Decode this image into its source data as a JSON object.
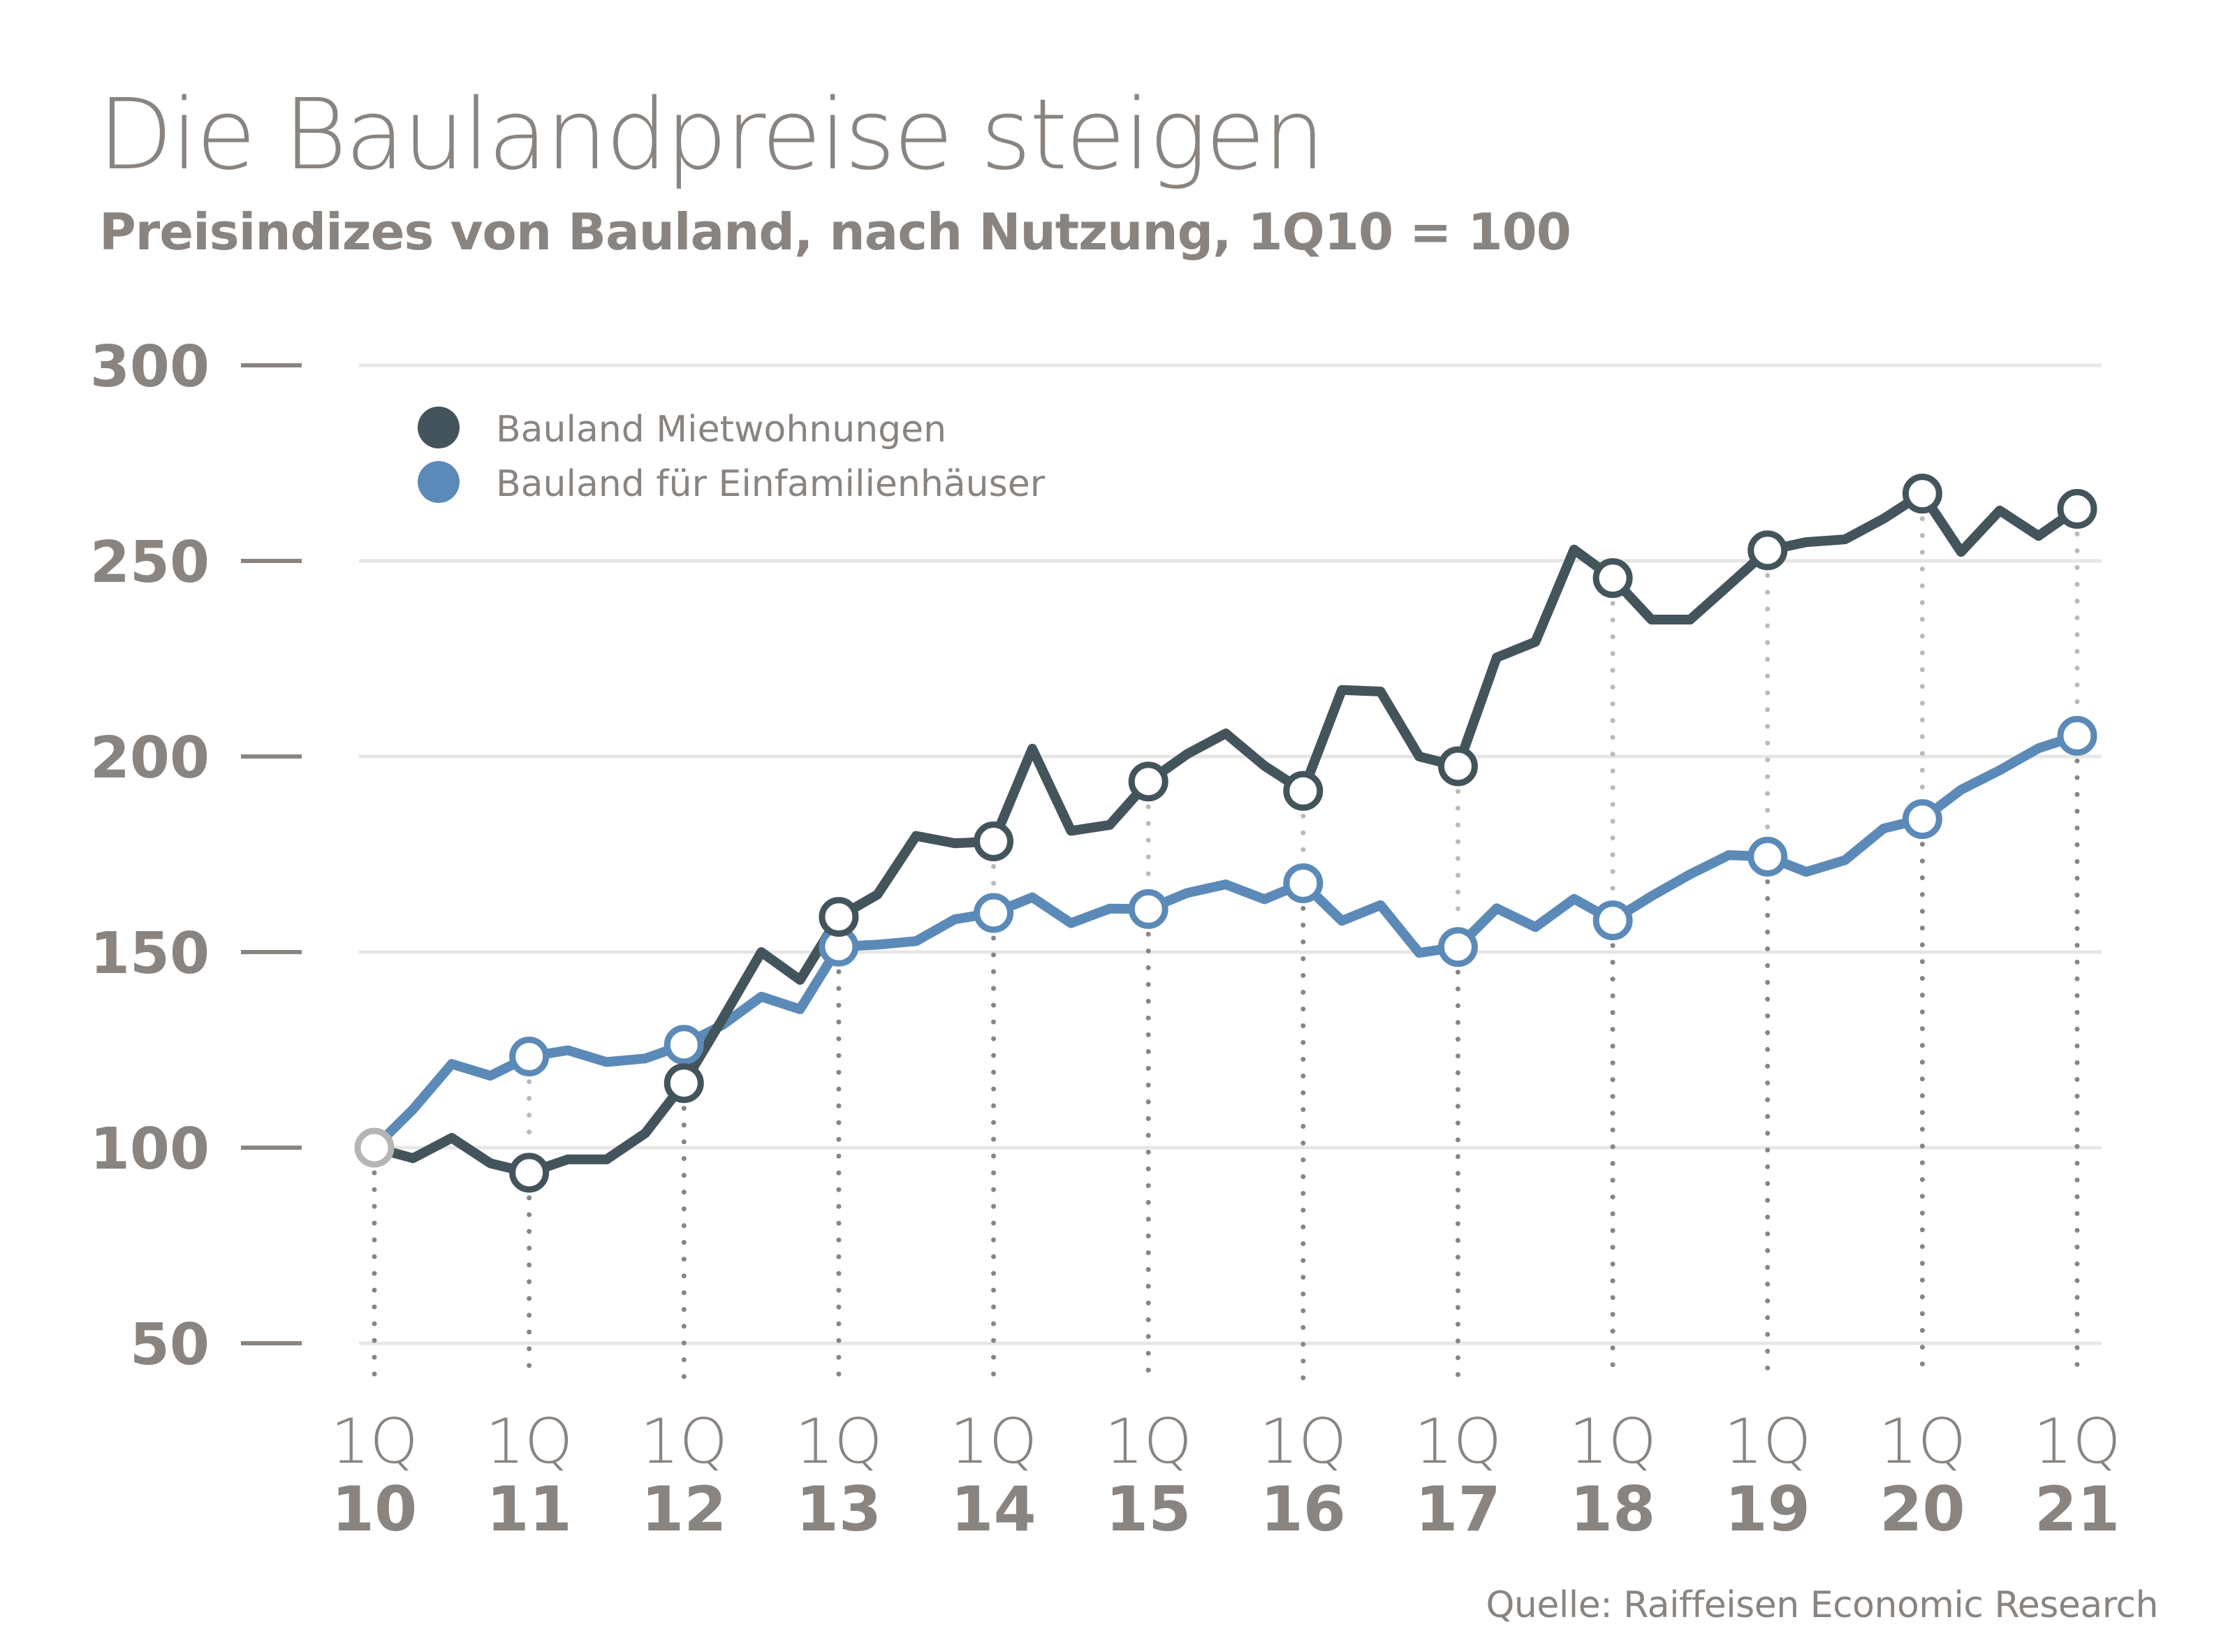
{
  "header": {
    "title": "Die Baulandpreise steigen",
    "subtitle": "Preisindizes von Bauland, nach Nutzung, 1Q10 = 100"
  },
  "footer": {
    "source": "Quelle: Raiffeisen Economic Research"
  },
  "colors": {
    "text": "#8a8480",
    "gridline": "#e8e6e5",
    "series_dark": "#44545c",
    "series_blue": "#5b8ab8",
    "base_marker": "#b5b5b5",
    "dotted_upper": "#bdb9b6",
    "dotted_lower": "#8a8480"
  },
  "chart_data": {
    "type": "line",
    "title": "Die Baulandpreise steigen",
    "subtitle": "Preisindizes von Bauland, nach Nutzung, 1Q10 = 100",
    "xlabel": "",
    "ylabel": "",
    "ylim": [
      50,
      300
    ],
    "yticks": [
      300,
      250,
      200,
      150,
      100,
      50
    ],
    "grid": true,
    "legend_position": "top-left",
    "x_tick_labels": [
      {
        "q": "1Q",
        "year": "10"
      },
      {
        "q": "1Q",
        "year": "11"
      },
      {
        "q": "1Q",
        "year": "12"
      },
      {
        "q": "1Q",
        "year": "13"
      },
      {
        "q": "1Q",
        "year": "14"
      },
      {
        "q": "1Q",
        "year": "15"
      },
      {
        "q": "1Q",
        "year": "16"
      },
      {
        "q": "1Q",
        "year": "17"
      },
      {
        "q": "1Q",
        "year": "18"
      },
      {
        "q": "1Q",
        "year": "19"
      },
      {
        "q": "1Q",
        "year": "20"
      },
      {
        "q": "1Q",
        "year": "21"
      }
    ],
    "x": [
      "1Q10",
      "2Q10",
      "3Q10",
      "4Q10",
      "1Q11",
      "2Q11",
      "3Q11",
      "4Q11",
      "1Q12",
      "2Q12",
      "3Q12",
      "4Q12",
      "1Q13",
      "2Q13",
      "3Q13",
      "4Q13",
      "1Q14",
      "2Q14",
      "3Q14",
      "4Q14",
      "1Q15",
      "2Q15",
      "3Q15",
      "4Q15",
      "1Q16",
      "2Q16",
      "3Q16",
      "4Q16",
      "1Q17",
      "2Q17",
      "3Q17",
      "4Q17",
      "1Q18",
      "2Q18",
      "3Q18",
      "4Q18",
      "1Q19",
      "2Q19",
      "3Q19",
      "4Q19",
      "1Q20",
      "2Q20",
      "3Q20",
      "4Q20",
      "1Q21"
    ],
    "series": [
      {
        "name": "Bauland Mietwohnungen",
        "color": "#44545c",
        "values": [
          100,
          97.3,
          102.5,
          96,
          93.6,
          97,
          97,
          103.7,
          116.5,
          133,
          150,
          142.9,
          159,
          164.7,
          179.7,
          177.8,
          178.3,
          202,
          181,
          182.5,
          193.6,
          200.6,
          205.9,
          197.6,
          191.2,
          217,
          216.6,
          200,
          197.5,
          225.3,
          229.3,
          252.9,
          245.6,
          235,
          235,
          243.8,
          252.7,
          254.8,
          255.5,
          260.8,
          267.2,
          252.3,
          262.9,
          256.4,
          263.3
        ]
      },
      {
        "name": "Bauland für Einfamilienhäuser",
        "color": "#5b8ab8",
        "values": [
          100,
          109.8,
          121.4,
          118.4,
          123.3,
          124.9,
          121.9,
          122.8,
          126.3,
          131.4,
          138.6,
          135.4,
          151.4,
          151.9,
          152.8,
          158.4,
          160,
          164,
          157.4,
          161.1,
          161,
          165.1,
          167.3,
          163.5,
          167.6,
          158,
          162,
          149.8,
          151.3,
          161.2,
          156.4,
          163.6,
          158.1,
          164.3,
          169.9,
          174.8,
          174.4,
          170.5,
          173.5,
          181.6,
          184,
          191.5,
          196.5,
          202.1,
          205.3
        ]
      }
    ],
    "markers_every_n_quarters": 4
  }
}
